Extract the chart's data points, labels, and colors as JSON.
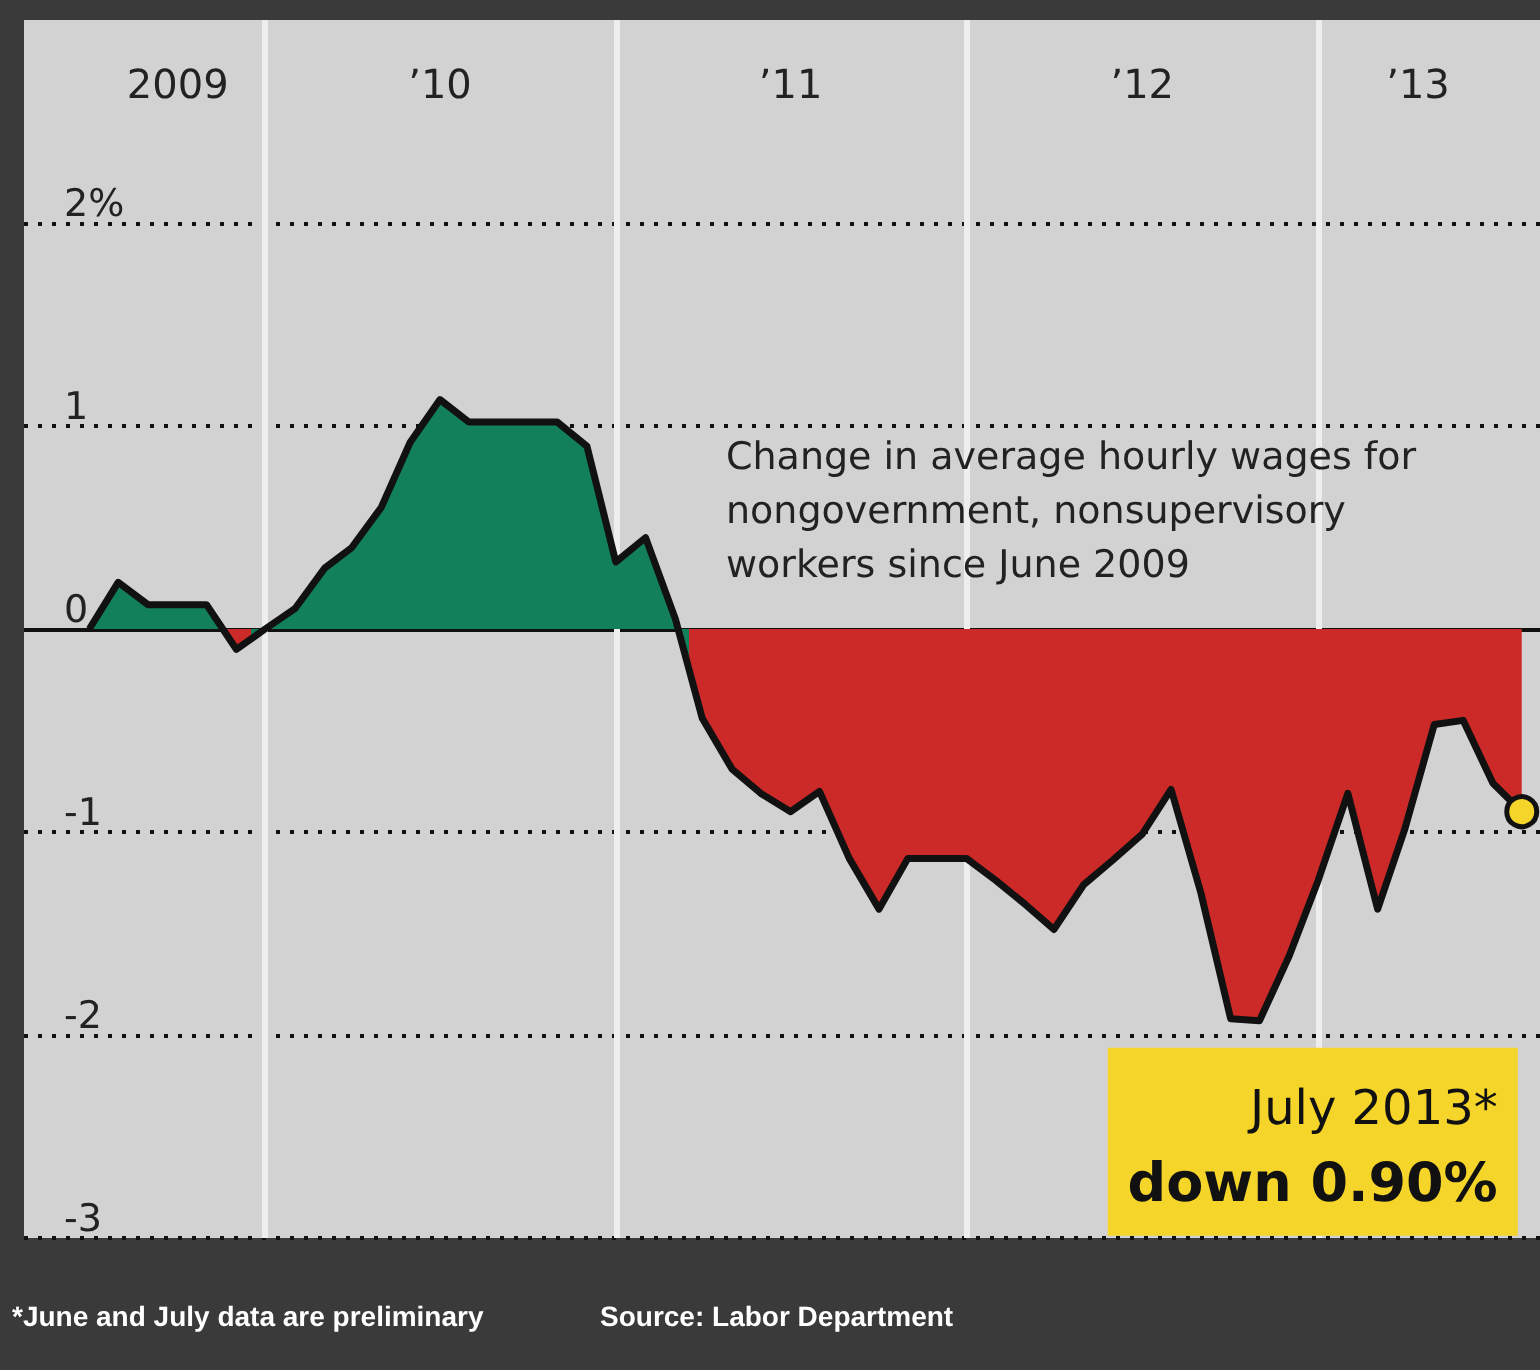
{
  "chart_data": {
    "type": "area",
    "title": "Change in average hourly wages for nongovernment, nonsupervisory workers since June 2009",
    "x": [
      "2009-06",
      "2009-07",
      "2009-08",
      "2009-09",
      "2009-10",
      "2009-11",
      "2009-12",
      "2010-01",
      "2010-02",
      "2010-03",
      "2010-04",
      "2010-05",
      "2010-06",
      "2010-07",
      "2010-08",
      "2010-09",
      "2010-10",
      "2010-11",
      "2010-12",
      "2011-01",
      "2011-02",
      "2011-03",
      "2011-04",
      "2011-05",
      "2011-06",
      "2011-07",
      "2011-08",
      "2011-09",
      "2011-10",
      "2011-11",
      "2011-12",
      "2012-01",
      "2012-02",
      "2012-03",
      "2012-04",
      "2012-05",
      "2012-06",
      "2012-07",
      "2012-08",
      "2012-09",
      "2012-10",
      "2012-11",
      "2012-12",
      "2013-01",
      "2013-02",
      "2013-03",
      "2013-04",
      "2013-05",
      "2013-06",
      "2013-07"
    ],
    "series": [
      {
        "values": [
          0,
          0.23,
          0.12,
          0.12,
          0.12,
          -0.1,
          0,
          0.1,
          0.3,
          0.4,
          0.6,
          0.92,
          1.13,
          1.02,
          1.02,
          1.02,
          1.02,
          0.9,
          0.33,
          0.45,
          0.05,
          -0.44,
          -0.69,
          -0.81,
          -0.9,
          -0.8,
          -1.13,
          -1.38,
          -1.13,
          -1.13,
          -1.13,
          -1.24,
          -1.36,
          -1.48,
          -1.26,
          -1.14,
          -1.01,
          -0.79,
          -1.3,
          -1.92,
          -1.93,
          -1.61,
          -1.24,
          -0.81,
          -1.38,
          -0.99,
          -0.47,
          -0.45,
          -0.76,
          -0.9
        ],
        "colors": [
          "#12805a",
          "#12805a",
          "#12805a",
          "#12805a",
          "#12805a",
          "#cc2a28",
          "#12805a",
          "#12805a",
          "#12805a",
          "#12805a",
          "#12805a",
          "#12805a",
          "#12805a",
          "#12805a",
          "#12805a",
          "#12805a",
          "#12805a",
          "#12805a",
          "#12805a",
          "#12805a",
          "#12805a",
          "#cc2a28",
          "#cc2a28",
          "#cc2a28",
          "#cc2a28",
          "#cc2a28",
          "#cc2a28",
          "#cc2a28",
          "#cc2a28",
          "#cc2a28",
          "#cc2a28",
          "#cc2a28",
          "#cc2a28",
          "#cc2a28",
          "#cc2a28",
          "#cc2a28",
          "#cc2a28",
          "#cc2a28",
          "#cc2a28",
          "#cc2a28",
          "#cc2a28",
          "#cc2a28",
          "#cc2a28",
          "#cc2a28",
          "#cc2a28",
          "#cc2a28",
          "#cc2a28",
          "#cc2a28",
          "#cc2a28",
          "#cc2a28"
        ]
      }
    ],
    "xlim": [
      "2009-03-25",
      "2013-07-20"
    ],
    "xticks": [
      {
        "value": "2009-09-01",
        "label": "2009"
      },
      {
        "value": "2010-06-01",
        "label": "’10"
      },
      {
        "value": "2011-06-01",
        "label": "’11"
      },
      {
        "value": "2012-06-01",
        "label": "’12"
      },
      {
        "value": "2013-03-15",
        "label": "’13"
      }
    ],
    "ylim": [
      -3,
      3
    ],
    "yticks": [
      {
        "value": 2,
        "label": "2%"
      },
      1,
      0,
      -1,
      -2,
      -3
    ],
    "grid": "y",
    "ref_lines": [
      {
        "axis": "y",
        "value": 0,
        "color": "#111111"
      },
      {
        "axis": "x",
        "value": "2009-12-01",
        "color": "#eeeeee"
      },
      {
        "axis": "x",
        "value": "2010-12-01",
        "color": "#eeeeee"
      },
      {
        "axis": "x",
        "value": "2011-12-01",
        "color": "#eeeeee"
      },
      {
        "axis": "x",
        "value": "2012-12-01",
        "color": "#eeeeee"
      }
    ],
    "annotations": [
      "July 2013*",
      "down 0.90%",
      "*June and July data are preliminary",
      "Source: Labor Department"
    ]
  }
}
